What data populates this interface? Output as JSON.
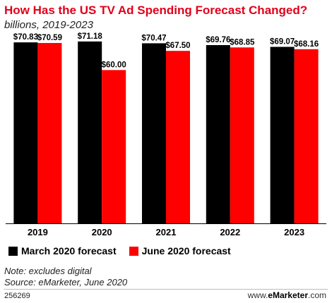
{
  "header": {
    "title": "How Has the US TV Ad Spending Forecast Changed?",
    "subtitle": "billions, 2019-2023"
  },
  "chart_data": {
    "type": "bar",
    "title": "How Has the US TV Ad Spending Forecast Changed?",
    "subtitle": "billions, 2019-2023",
    "categories": [
      "2019",
      "2020",
      "2021",
      "2022",
      "2023"
    ],
    "series": [
      {
        "name": "March 2020 forecast",
        "color": "#000000",
        "values": [
          70.83,
          71.18,
          70.47,
          69.76,
          69.07
        ],
        "labels": [
          "$70.83",
          "$71.18",
          "$70.47",
          "$69.76",
          "$69.07"
        ]
      },
      {
        "name": "June 2020 forecast",
        "color": "#ff0000",
        "values": [
          70.59,
          60.0,
          67.5,
          68.85,
          68.16
        ],
        "labels": [
          "$70.59",
          "$60.00",
          "$67.50",
          "$68.85",
          "$68.16"
        ]
      }
    ],
    "ylim": [
      0,
      75
    ],
    "grid": false,
    "legend_position": "bottom-left"
  },
  "footer": {
    "note": "Note: excludes digital",
    "source": "Source: eMarketer, June 2020",
    "chart_id": "256269",
    "brand_prefix": "www.",
    "brand_name": "eMarketer",
    "brand_suffix": ".com"
  }
}
